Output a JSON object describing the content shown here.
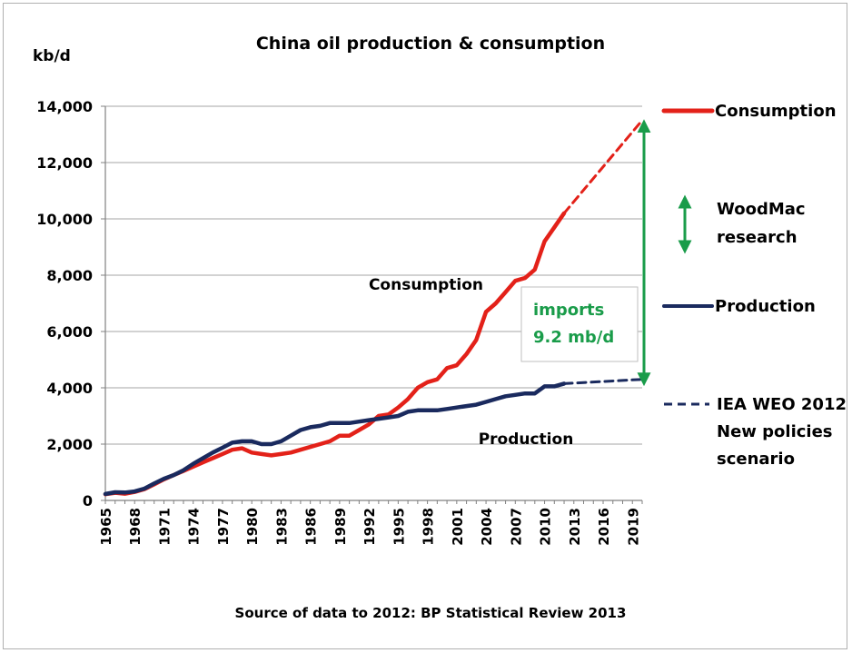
{
  "chart_data": {
    "type": "line",
    "title": "China oil production & consumption",
    "ylabel": "kb/d",
    "xlabel": "",
    "ylim": [
      0,
      14000
    ],
    "yticks": [
      0,
      2000,
      4000,
      6000,
      8000,
      10000,
      12000,
      14000
    ],
    "ytick_labels": [
      "0",
      "2,000",
      "4,000",
      "6,000",
      "8,000",
      "10,000",
      "12,000",
      "14,000"
    ],
    "xlim": [
      1965,
      2020
    ],
    "xticks": [
      1965,
      1968,
      1971,
      1974,
      1977,
      1980,
      1983,
      1986,
      1989,
      1992,
      1995,
      1998,
      2001,
      2004,
      2007,
      2010,
      2013,
      2016,
      2019
    ],
    "grid": true,
    "series": [
      {
        "name": "Consumption",
        "color": "#e32119",
        "style": "solid",
        "x": [
          1965,
          1966,
          1967,
          1968,
          1969,
          1970,
          1971,
          1972,
          1973,
          1974,
          1975,
          1976,
          1977,
          1978,
          1979,
          1980,
          1981,
          1982,
          1983,
          1984,
          1985,
          1986,
          1987,
          1988,
          1989,
          1990,
          1991,
          1992,
          1993,
          1994,
          1995,
          1996,
          1997,
          1998,
          1999,
          2000,
          2001,
          2002,
          2003,
          2004,
          2005,
          2006,
          2007,
          2008,
          2009,
          2010,
          2011,
          2012
        ],
        "values": [
          220,
          270,
          240,
          300,
          400,
          570,
          750,
          900,
          1050,
          1200,
          1350,
          1500,
          1650,
          1800,
          1850,
          1700,
          1650,
          1600,
          1650,
          1700,
          1800,
          1900,
          2000,
          2100,
          2300,
          2300,
          2500,
          2700,
          3000,
          3050,
          3300,
          3600,
          4000,
          4200,
          4300,
          4700,
          4800,
          5200,
          5700,
          6700,
          7000,
          7400,
          7800,
          7900,
          8200,
          9200,
          9700,
          10200
        ]
      },
      {
        "name": "",
        "color": "#e32119",
        "style": "dashed",
        "x": [
          2012,
          2020
        ],
        "values": [
          10200,
          13500
        ]
      },
      {
        "name": "Production",
        "color": "#1a2a5e",
        "style": "solid",
        "x": [
          1965,
          1966,
          1967,
          1968,
          1969,
          1970,
          1971,
          1972,
          1973,
          1974,
          1975,
          1976,
          1977,
          1978,
          1979,
          1980,
          1981,
          1982,
          1983,
          1984,
          1985,
          1986,
          1987,
          1988,
          1989,
          1990,
          1991,
          1992,
          1993,
          1994,
          1995,
          1996,
          1997,
          1998,
          1999,
          2000,
          2001,
          2002,
          2003,
          2004,
          2005,
          2006,
          2007,
          2008,
          2009,
          2010,
          2011,
          2012
        ],
        "values": [
          230,
          290,
          280,
          320,
          420,
          600,
          770,
          900,
          1070,
          1300,
          1500,
          1700,
          1870,
          2050,
          2100,
          2100,
          2000,
          2000,
          2100,
          2300,
          2500,
          2600,
          2650,
          2750,
          2750,
          2750,
          2800,
          2850,
          2900,
          2950,
          3000,
          3150,
          3200,
          3200,
          3200,
          3250,
          3300,
          3350,
          3400,
          3500,
          3600,
          3700,
          3750,
          3800,
          3800,
          4050,
          4050,
          4150
        ]
      },
      {
        "name": "",
        "color": "#1a2a5e",
        "style": "dashed",
        "x": [
          2012,
          2020
        ],
        "values": [
          4150,
          4300
        ]
      }
    ],
    "annotations": {
      "consumption_label": "Consumption",
      "production_label": "Production",
      "imports_line1": "imports",
      "imports_line2": "9.2 mb/d",
      "imports_arrow": {
        "x": 2020,
        "from": 4300,
        "to": 13300
      }
    },
    "legend": {
      "placement": "right",
      "items": [
        {
          "label": "Consumption",
          "color": "#e32119",
          "style": "solid"
        },
        {
          "label_lines": [
            "WoodMac",
            "research"
          ],
          "color": "#1a9c4a",
          "style": "double-arrow"
        },
        {
          "label": "Production",
          "color": "#1a2a5e",
          "style": "solid"
        },
        {
          "label_lines": [
            "IEA WEO 2012",
            "New policies",
            "scenario"
          ],
          "color": "#1a2a5e",
          "style": "dashed"
        }
      ]
    },
    "source_note": "Source of data to 2012: BP Statistical Review 2013",
    "colors": {
      "consumption": "#e32119",
      "production": "#1a2a5e",
      "imports": "#1a9c4a",
      "grid": "#a6a6a6"
    }
  }
}
